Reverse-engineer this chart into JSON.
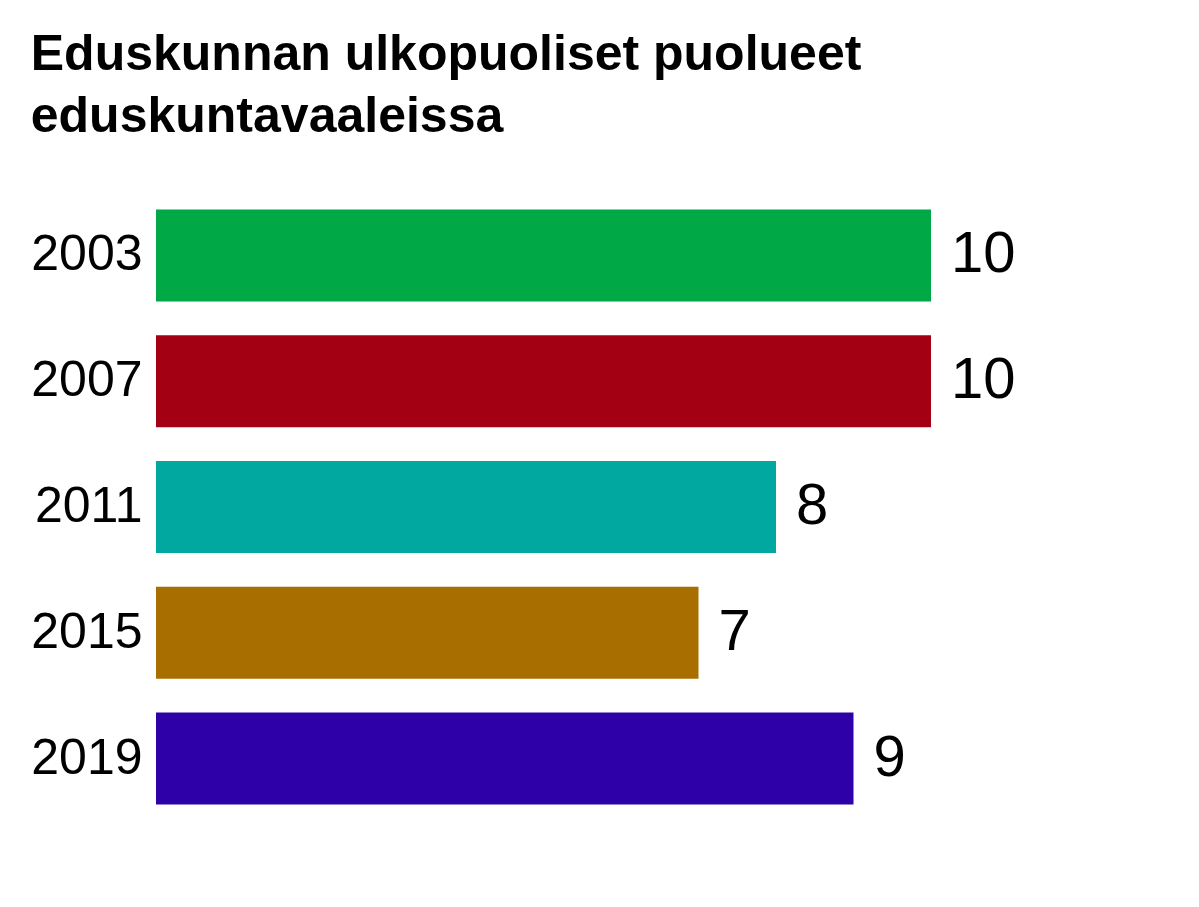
{
  "chart_data": {
    "type": "bar",
    "orientation": "horizontal",
    "title": "Eduskunnan ulkopuoliset puolueet\neduskuntavaaleissa",
    "categories": [
      "2003",
      "2007",
      "2011",
      "2015",
      "2019"
    ],
    "values": [
      10,
      10,
      8,
      7,
      9
    ],
    "colors": [
      "#00a846",
      "#a30014",
      "#00a8a0",
      "#a86e00",
      "#2e00a8"
    ],
    "data_labels": true
  }
}
